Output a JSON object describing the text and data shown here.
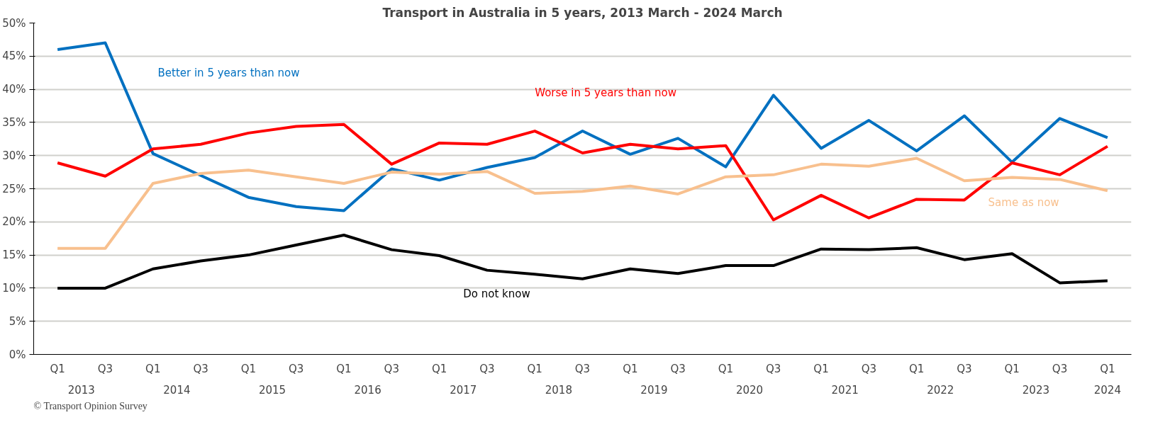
{
  "chart_data": {
    "type": "line",
    "title": "Transport in Australia in 5 years, 2013 March - 2024 March",
    "categories": [
      "Q1",
      "Q3",
      "Q1",
      "Q3",
      "Q1",
      "Q3",
      "Q1",
      "Q3",
      "Q1",
      "Q3",
      "Q1",
      "Q3",
      "Q1",
      "Q3",
      "Q1",
      "Q3",
      "Q1",
      "Q3",
      "Q1",
      "Q3",
      "Q1",
      "Q3",
      "Q1"
    ],
    "series": [
      {
        "name": "Better in 5 years than now",
        "color": "#0070c0",
        "values": [
          46,
          47,
          30.3,
          27,
          23.7,
          22.3,
          21.7,
          28,
          26.3,
          28.2,
          29.7,
          33.7,
          30.2,
          32.6,
          28.3,
          39.1,
          31.1,
          35.3,
          30.7,
          36,
          29,
          35.6,
          32.7
        ]
      },
      {
        "name": "Worse in 5 years than now",
        "color": "#ff0000",
        "values": [
          28.9,
          26.9,
          31,
          31.7,
          33.4,
          34.4,
          34.7,
          28.7,
          31.9,
          31.7,
          33.7,
          30.4,
          31.7,
          31,
          31.5,
          20.3,
          24,
          20.6,
          23.4,
          23.3,
          28.9,
          27.1,
          31.4
        ]
      },
      {
        "name": "Same as now",
        "color": "#f8c08e",
        "values": [
          16,
          16,
          25.8,
          27.3,
          27.8,
          26.8,
          25.8,
          27.5,
          27.2,
          27.6,
          24.3,
          24.6,
          25.4,
          24.2,
          26.8,
          27.1,
          28.7,
          28.4,
          29.6,
          26.2,
          26.7,
          26.4,
          24.7
        ]
      },
      {
        "name": "Do not know",
        "color": "#000000",
        "values": [
          10,
          10,
          12.9,
          14.1,
          15,
          16.5,
          18,
          15.8,
          14.9,
          12.7,
          12.1,
          11.4,
          12.9,
          12.2,
          13.4,
          13.4,
          15.9,
          15.8,
          16.1,
          14.3,
          15.2,
          10.8,
          11.1
        ]
      }
    ],
    "ylim": [
      0,
      50
    ],
    "yticks": [
      {
        "value": 0,
        "label": "0%"
      },
      {
        "value": 5,
        "label": "5%"
      },
      {
        "value": 10,
        "label": "10%"
      },
      {
        "value": 15,
        "label": "15%"
      },
      {
        "value": 20,
        "label": "20%"
      },
      {
        "value": 25,
        "label": "25%"
      },
      {
        "value": 30,
        "label": "30%"
      },
      {
        "value": 35,
        "label": "35%"
      },
      {
        "value": 40,
        "label": "40%"
      },
      {
        "value": 45,
        "label": "45%"
      },
      {
        "value": 50,
        "label": "50%"
      }
    ],
    "grid": "y",
    "legend": false,
    "marker": "none",
    "line_style": "solid",
    "annotations": [
      "2013",
      "2014",
      "2015",
      "2016",
      "2017",
      "2018",
      "2019",
      "2020",
      "2021",
      "2022",
      "2023",
      "2024",
      "© Transport Opinion Survey"
    ]
  }
}
